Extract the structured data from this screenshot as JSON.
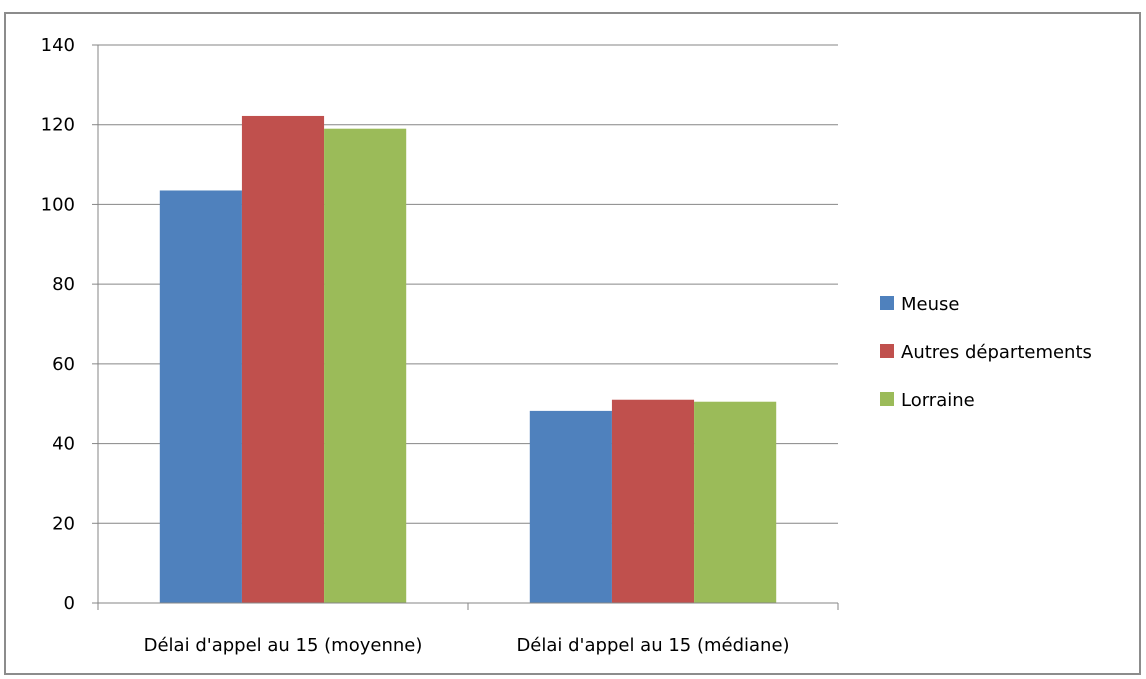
{
  "chart_data": {
    "type": "bar",
    "categories": [
      "Délai d'appel au 15 (moyenne)",
      "Délai d'appel au 15 (médiane)"
    ],
    "series": [
      {
        "name": "Meuse",
        "values": [
          103.5,
          48.2
        ],
        "color": "#4f81bd"
      },
      {
        "name": "Autres départements",
        "values": [
          122.2,
          51.0
        ],
        "color": "#c0504d"
      },
      {
        "name": "Lorraine",
        "values": [
          119.0,
          50.5
        ],
        "color": "#9bbb59"
      }
    ],
    "title": "",
    "xlabel": "",
    "ylabel": "",
    "ylim": [
      0,
      140
    ],
    "yticks": [
      0,
      20,
      40,
      60,
      80,
      100,
      120,
      140
    ],
    "grid": true,
    "legend_position": "right"
  }
}
